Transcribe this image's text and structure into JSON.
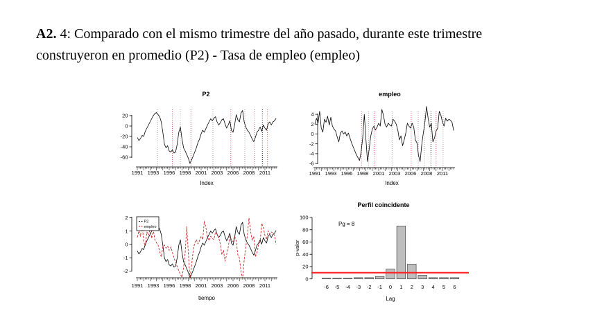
{
  "heading": {
    "bold": "A2.",
    "line1_rest": " 4: Comparado con el mismo trimestre del año pasado, durante este trimestre",
    "line2": "construyeron en promedio (P2) - Tasa de empleo (empleo)"
  },
  "colors": {
    "series_black": "#000000",
    "series_red": "#cc2222",
    "vline_gray": "#999999",
    "vline_red": "#cc5555",
    "vline_black": "#111111",
    "bar_fill": "#bebebe",
    "bar_border": "#444444",
    "hline_red": "#ff2222"
  },
  "chart_data": [
    {
      "id": "p2",
      "type": "line",
      "title": "P2",
      "xlabel": "Index",
      "x_start": 1991,
      "x_step": 0.25,
      "x_domain": [
        1991,
        2012.75
      ],
      "x_tick_labels": [
        1991,
        1993,
        1996,
        1998,
        2001,
        2003,
        2006,
        2008,
        2011
      ],
      "y_ticks": [
        20,
        0,
        -20,
        -40,
        -60
      ],
      "ylim": [
        -75,
        32
      ],
      "values": [
        -22,
        -28,
        -24,
        -18,
        -20,
        -10,
        -4,
        2,
        8,
        14,
        20,
        24,
        26,
        22,
        18,
        8,
        -12,
        -35,
        -42,
        -38,
        -48,
        -50,
        -46,
        -52,
        -50,
        -35,
        -12,
        -2,
        -25,
        -42,
        -48,
        -55,
        -62,
        -72,
        -65,
        -58,
        -50,
        -42,
        -32,
        -25,
        -15,
        -8,
        -12,
        -5,
        2,
        8,
        14,
        10,
        15,
        18,
        8,
        2,
        6,
        12,
        14,
        4,
        -4,
        2,
        10,
        -8,
        -12,
        2,
        22,
        12,
        8,
        25,
        30,
        8,
        -2,
        -8,
        -12,
        -18,
        -25,
        -30,
        -22,
        -12,
        -8,
        -2,
        -10,
        2,
        -4,
        -8,
        4,
        8,
        2,
        8,
        10,
        15
      ],
      "vlines": [
        {
          "x": 1994.15,
          "color": "gray"
        },
        {
          "x": 1996.5,
          "color": "red"
        },
        {
          "x": 1997.75,
          "color": "gray"
        },
        {
          "x": 1999.4,
          "color": "red"
        },
        {
          "x": 2002.85,
          "color": "gray"
        },
        {
          "x": 2005.65,
          "color": "red"
        },
        {
          "x": 2007.85,
          "color": "gray"
        },
        {
          "x": 2009.4,
          "color": "red"
        },
        {
          "x": 2010.6,
          "color": "black"
        },
        {
          "x": 2011.4,
          "color": "red"
        }
      ]
    },
    {
      "id": "empleo",
      "type": "line",
      "title": "empleo",
      "xlabel": "Index",
      "x_start": 1991,
      "x_step": 0.25,
      "x_domain": [
        1991,
        2012.75
      ],
      "x_tick_labels": [
        1991,
        1993,
        1996,
        1998,
        2001,
        2003,
        2006,
        2008,
        2011
      ],
      "y_ticks": [
        4,
        2,
        0,
        -2,
        -4,
        -6
      ],
      "ylim": [
        -6.2,
        5.8
      ],
      "values": [
        2.0,
        3.2,
        2.2,
        4.6,
        1.2,
        0.4,
        3.0,
        2.4,
        3.6,
        1.8,
        3.4,
        1.6,
        1.0,
        0.6,
        -0.6,
        -1.6,
        0.2,
        0.6,
        0.0,
        0.4,
        -0.4,
        0.2,
        -0.8,
        -1.8,
        -2.6,
        -3.4,
        -4.2,
        -4.8,
        -5.4,
        -3.6,
        -0.8,
        4.0,
        -1.0,
        -5.6,
        -3.2,
        -0.5,
        1.0,
        1.6,
        0.8,
        1.4,
        2.2,
        1.6,
        5.0,
        3.8,
        2.0,
        1.4,
        2.2,
        1.8,
        1.6,
        3.0,
        2.6,
        2.0,
        0.8,
        -1.2,
        -0.4,
        -2.4,
        -1.2,
        0.2,
        2.2,
        1.6,
        1.2,
        2.2,
        1.4,
        -1.2,
        -1.8,
        -4.4,
        -5.6,
        -2.2,
        0.2,
        2.4,
        5.6,
        3.2,
        1.4,
        2.2,
        -1.6,
        -0.8,
        0.6,
        1.2,
        4.6,
        3.8,
        2.4,
        1.6,
        3.2,
        2.6,
        3.0,
        2.8,
        2.4,
        0.7
      ],
      "vlines": [
        {
          "x": 1998.3,
          "color": "red"
        },
        {
          "x": 1999.4,
          "color": "gray"
        },
        {
          "x": 2000.4,
          "color": "red"
        },
        {
          "x": 2003.1,
          "color": "gray"
        },
        {
          "x": 2006.1,
          "color": "red"
        },
        {
          "x": 2007.2,
          "color": "gray"
        },
        {
          "x": 2008.2,
          "color": "gray"
        },
        {
          "x": 2009.2,
          "color": "black"
        },
        {
          "x": 2010.0,
          "color": "red"
        },
        {
          "x": 2011.1,
          "color": "gray"
        }
      ]
    },
    {
      "id": "std",
      "type": "line",
      "title": "",
      "xlabel": "tiempo",
      "x_start": 1991,
      "x_step": 0.25,
      "x_domain": [
        1991,
        2012.75
      ],
      "x_tick_labels": [
        1991,
        1993,
        1996,
        1998,
        2001,
        2003,
        2006,
        2008,
        2011
      ],
      "y_ticks": [
        2,
        1,
        0,
        -1,
        -2
      ],
      "ylim": [
        -2.8,
        2.2
      ],
      "standardized": true,
      "source_ids": [
        "p2",
        "empleo"
      ],
      "legend": [
        {
          "label": "P2",
          "color": "black",
          "style": "solid"
        },
        {
          "label": "empleo",
          "color": "red",
          "style": "dashed"
        }
      ],
      "legend_position": "top-left"
    },
    {
      "id": "perfil",
      "type": "bar",
      "title": "Perfil coincidente",
      "annotation": "Pg = 8",
      "xlabel": "Lag",
      "ylabel": "p-valor",
      "categories": [
        -6,
        -5,
        -4,
        -3,
        -2,
        -1,
        0,
        1,
        2,
        3,
        4,
        5,
        6
      ],
      "values": [
        1,
        1,
        1,
        2,
        2,
        4,
        16,
        86,
        24,
        6,
        2,
        2,
        2
      ],
      "y_ticks": [
        0,
        20,
        40,
        60,
        80,
        100
      ],
      "ylim": [
        0,
        100
      ],
      "hline_y": 10
    }
  ]
}
